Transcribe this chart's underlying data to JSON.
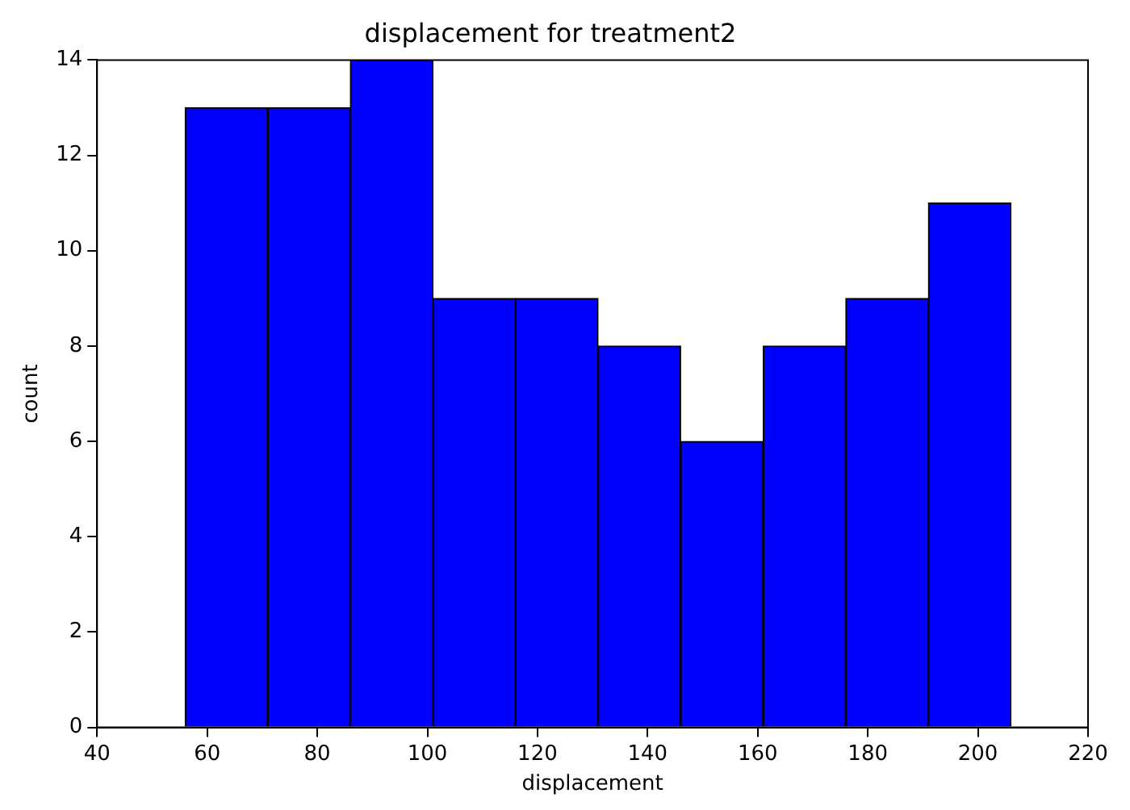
{
  "chart_data": {
    "type": "histogram",
    "title": "displacement for treatment2",
    "xlabel": "displacement",
    "ylabel": "count",
    "bins": [
      56,
      71,
      86,
      101,
      116,
      131,
      146,
      161,
      176,
      191,
      206
    ],
    "values": [
      13,
      13,
      14,
      9,
      9,
      8,
      6,
      8,
      9,
      11
    ],
    "color": "#0000ff",
    "xlim": [
      40,
      220
    ],
    "xticks": [
      40,
      60,
      80,
      100,
      120,
      140,
      160,
      180,
      200,
      220
    ],
    "ylim": [
      0,
      14
    ],
    "yticks": [
      0,
      2,
      4,
      6,
      8,
      10,
      12,
      14
    ],
    "grid": false,
    "legend": false
  }
}
